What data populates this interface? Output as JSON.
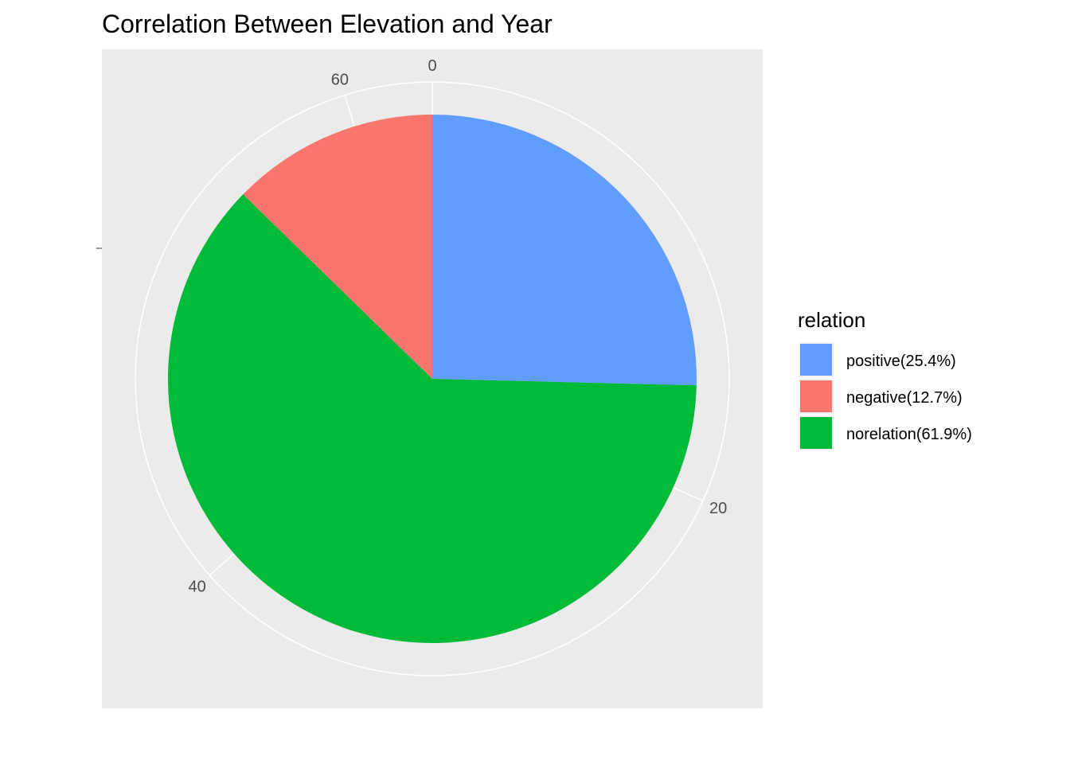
{
  "chart_data": {
    "type": "pie",
    "title": "Correlation Between Elevation and Year",
    "theta_axis": {
      "ticks": [
        0,
        20,
        40,
        60
      ],
      "tick_labels": [
        "0",
        "20",
        "40",
        "60"
      ],
      "total": 63,
      "grid": true
    },
    "legend": {
      "title": "relation",
      "placement": "right"
    },
    "series": [
      {
        "name": "positive(25.4%)",
        "value": 16,
        "color": "#619CFF"
      },
      {
        "name": "negative(12.7%)",
        "value": 8,
        "color": "#F8766D"
      },
      {
        "name": "norelation(61.9%)",
        "value": 39,
        "color": "#00BA38"
      }
    ],
    "slice_order": [
      "positive(25.4%)",
      "norelation(61.9%)",
      "negative(12.7%)"
    ],
    "panel_background": "#EBEBEB",
    "grid_color": "#FFFFFF"
  }
}
